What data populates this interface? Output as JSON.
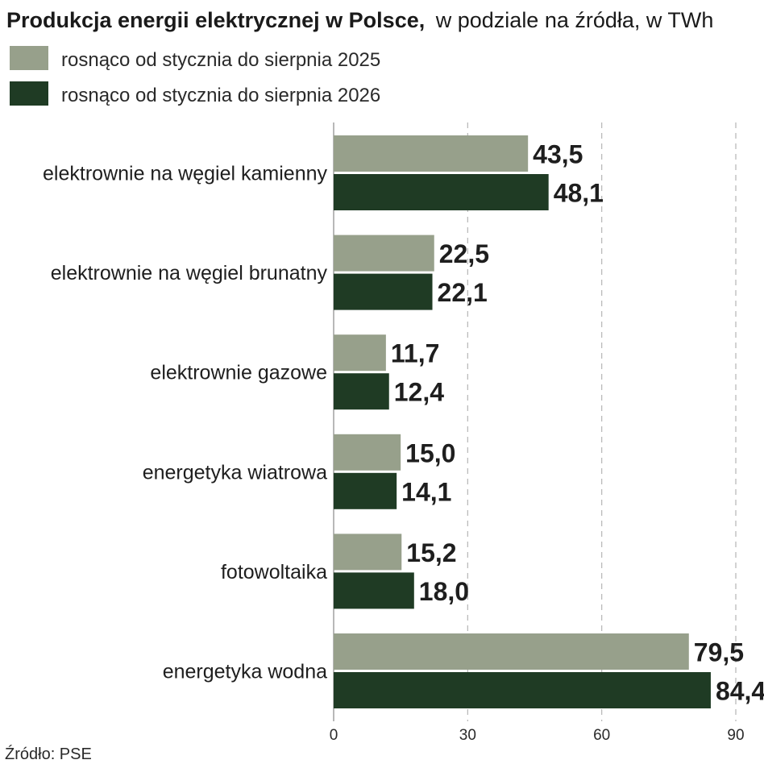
{
  "chart_data": {
    "type": "bar",
    "orientation": "horizontal",
    "title": "Produkcja energii elektrycznej w Polsce,",
    "subtitle": "w podziale na źródła, w TWh",
    "categories": [
      "elektrownie na węgiel kamienny",
      "elektrownie na węgiel brunatny",
      "elektrownie gazowe",
      "energetyka wiatrowa",
      "fotowoltaika",
      "energetyka wodna"
    ],
    "series": [
      {
        "name": "rosnąco od stycznia do sierpnia 2025",
        "color": "#97a08b",
        "values": [
          43.5,
          22.5,
          11.7,
          15.0,
          15.2,
          79.5
        ],
        "labels": [
          "43,5",
          "22,5",
          "11,7",
          "15,0",
          "15,2",
          "79,5"
        ]
      },
      {
        "name": "rosnąco od stycznia do sierpnia 2026",
        "color": "#1f3b24",
        "values": [
          48.1,
          22.1,
          12.4,
          14.1,
          18.0,
          84.4
        ],
        "labels": [
          "48,1",
          "22,1",
          "12,4",
          "14,1",
          "18,0",
          "84,4"
        ]
      }
    ],
    "xlim": [
      0,
      90
    ],
    "xticks": [
      "0",
      "30",
      "60",
      "90"
    ],
    "grid": true,
    "legend": "top-left",
    "source": "Źródło: PSE"
  }
}
